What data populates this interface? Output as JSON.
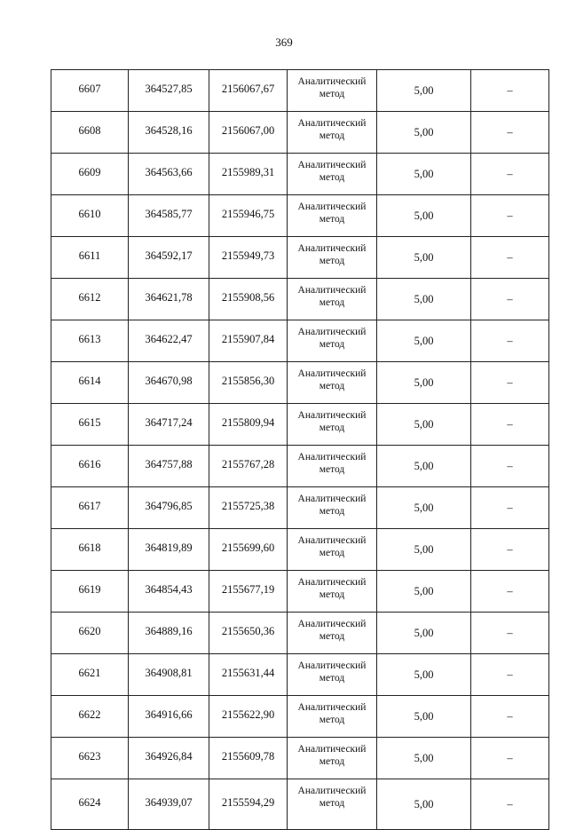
{
  "page_number": "369",
  "rows": [
    {
      "id": "6607",
      "x": "364527,85",
      "y": "2156067,67",
      "method": "Аналитический метод",
      "accuracy": "5,00",
      "note": "–"
    },
    {
      "id": "6608",
      "x": "364528,16",
      "y": "2156067,00",
      "method": "Аналитический метод",
      "accuracy": "5,00",
      "note": "–"
    },
    {
      "id": "6609",
      "x": "364563,66",
      "y": "2155989,31",
      "method": "Аналитический метод",
      "accuracy": "5,00",
      "note": "–"
    },
    {
      "id": "6610",
      "x": "364585,77",
      "y": "2155946,75",
      "method": "Аналитический метод",
      "accuracy": "5,00",
      "note": "–"
    },
    {
      "id": "6611",
      "x": "364592,17",
      "y": "2155949,73",
      "method": "Аналитический метод",
      "accuracy": "5,00",
      "note": "–"
    },
    {
      "id": "6612",
      "x": "364621,78",
      "y": "2155908,56",
      "method": "Аналитический метод",
      "accuracy": "5,00",
      "note": "–"
    },
    {
      "id": "6613",
      "x": "364622,47",
      "y": "2155907,84",
      "method": "Аналитический метод",
      "accuracy": "5,00",
      "note": "–"
    },
    {
      "id": "6614",
      "x": "364670,98",
      "y": "2155856,30",
      "method": "Аналитический метод",
      "accuracy": "5,00",
      "note": "–"
    },
    {
      "id": "6615",
      "x": "364717,24",
      "y": "2155809,94",
      "method": "Аналитический метод",
      "accuracy": "5,00",
      "note": "–"
    },
    {
      "id": "6616",
      "x": "364757,88",
      "y": "2155767,28",
      "method": "Аналитический метод",
      "accuracy": "5,00",
      "note": "–"
    },
    {
      "id": "6617",
      "x": "364796,85",
      "y": "2155725,38",
      "method": "Аналитический метод",
      "accuracy": "5,00",
      "note": "–"
    },
    {
      "id": "6618",
      "x": "364819,89",
      "y": "2155699,60",
      "method": "Аналитический метод",
      "accuracy": "5,00",
      "note": "–"
    },
    {
      "id": "6619",
      "x": "364854,43",
      "y": "2155677,19",
      "method": "Аналитический метод",
      "accuracy": "5,00",
      "note": "–"
    },
    {
      "id": "6620",
      "x": "364889,16",
      "y": "2155650,36",
      "method": "Аналитический метод",
      "accuracy": "5,00",
      "note": "–"
    },
    {
      "id": "6621",
      "x": "364908,81",
      "y": "2155631,44",
      "method": "Аналитический метод",
      "accuracy": "5,00",
      "note": "–"
    },
    {
      "id": "6622",
      "x": "364916,66",
      "y": "2155622,90",
      "method": "Аналитический метод",
      "accuracy": "5,00",
      "note": "–"
    },
    {
      "id": "6623",
      "x": "364926,84",
      "y": "2155609,78",
      "method": "Аналитический метод",
      "accuracy": "5,00",
      "note": "–"
    },
    {
      "id": "6624",
      "x": "364939,07",
      "y": "2155594,29",
      "method": "Аналитический метод",
      "accuracy": "5,00",
      "note": "–"
    }
  ]
}
